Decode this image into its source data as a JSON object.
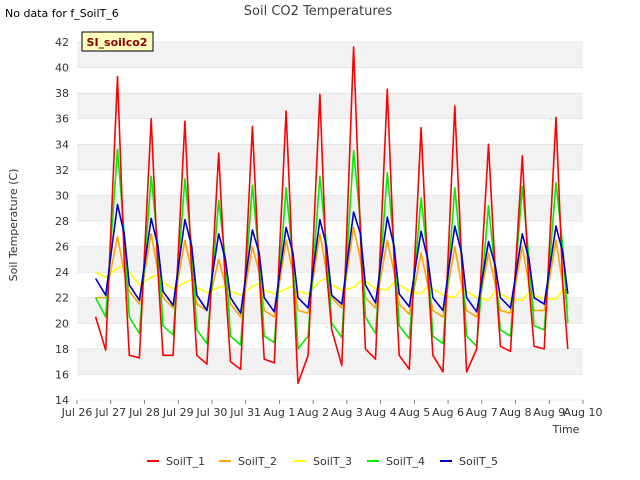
{
  "note": "No data for f_SoilT_6",
  "chart_data": {
    "type": "line",
    "title": "Soil CO2 Temperatures",
    "xlabel": "Time",
    "ylabel": "Soil Temperature (C)",
    "site_label": "SI_soilco2",
    "ylim": [
      14,
      42
    ],
    "yticks": [
      14,
      16,
      18,
      20,
      22,
      24,
      26,
      28,
      30,
      32,
      34,
      36,
      38,
      40,
      42
    ],
    "xlim": [
      0,
      15
    ],
    "xticks": [
      0,
      1,
      2,
      3,
      4,
      5,
      6,
      7,
      8,
      9,
      10,
      11,
      12,
      13,
      14,
      15
    ],
    "xtick_labels": [
      "Jul 26",
      "Jul 27",
      "Jul 28",
      "Jul 29",
      "Jul 30",
      "Jul 31",
      "Aug 1",
      "Aug 2",
      "Aug 3",
      "Aug 4",
      "Aug 5",
      "Aug 6",
      "Aug 7",
      "Aug 8",
      "Aug 9",
      "Aug 10"
    ],
    "grid": "horizontal-bands",
    "legend_position": "bottom",
    "series": [
      {
        "name": "SoilT_1",
        "color": "#ff0000",
        "x": [
          0.55,
          0.85,
          1.2,
          1.4,
          1.55,
          1.85,
          2.2,
          2.4,
          2.55,
          2.85,
          3.2,
          3.4,
          3.55,
          3.85,
          4.2,
          4.4,
          4.55,
          4.85,
          5.2,
          5.4,
          5.55,
          5.85,
          6.2,
          6.4,
          6.55,
          6.85,
          7.2,
          7.4,
          7.55,
          7.85,
          8.2,
          8.4,
          8.55,
          8.85,
          9.2,
          9.4,
          9.55,
          9.85,
          10.2,
          10.4,
          10.55,
          10.85,
          11.2,
          11.4,
          11.55,
          11.85,
          12.2,
          12.4,
          12.55,
          12.85,
          13.2,
          13.4,
          13.55,
          13.85,
          14.2,
          14.4,
          14.55
        ],
        "y": [
          20.5,
          17.9,
          39.3,
          25,
          17.5,
          17.3,
          36,
          24,
          17.5,
          17.5,
          35.8,
          24,
          17.5,
          16.8,
          33.3,
          23,
          17,
          16.4,
          35.4,
          24,
          17.2,
          16.9,
          36.6,
          24,
          15.3,
          17.5,
          37.9,
          24,
          19.5,
          16.7,
          41.6,
          27,
          18,
          17.2,
          38.3,
          25,
          17.5,
          16.4,
          35.3,
          24,
          17.5,
          16.2,
          37,
          25,
          16.2,
          18,
          34,
          24,
          18.2,
          17.8,
          33.1,
          23,
          18.2,
          18,
          36.1,
          23,
          18
        ]
      },
      {
        "name": "SoilT_2",
        "color": "#ffa500",
        "x": [
          0.55,
          0.85,
          1.2,
          1.4,
          1.55,
          1.85,
          2.2,
          2.4,
          2.55,
          2.85,
          3.2,
          3.4,
          3.55,
          3.85,
          4.2,
          4.4,
          4.55,
          4.85,
          5.2,
          5.4,
          5.55,
          5.85,
          6.2,
          6.4,
          6.55,
          6.85,
          7.2,
          7.4,
          7.55,
          7.85,
          8.2,
          8.4,
          8.55,
          8.85,
          9.2,
          9.4,
          9.55,
          9.85,
          10.2,
          10.4,
          10.55,
          10.85,
          11.2,
          11.4,
          11.55,
          11.85,
          12.2,
          12.4,
          12.55,
          12.85,
          13.2,
          13.4,
          13.55,
          13.85,
          14.2,
          14.4,
          14.55
        ],
        "y": [
          22,
          22,
          26.8,
          24,
          22.5,
          21.5,
          27,
          24,
          22,
          21.2,
          26.5,
          24,
          21.5,
          21,
          25,
          23,
          21.5,
          20.5,
          26,
          24,
          21,
          20.5,
          26.5,
          24,
          21,
          20.8,
          27,
          24,
          22,
          21.2,
          27.5,
          25,
          22,
          21.2,
          26.5,
          24,
          21.5,
          20.7,
          25.5,
          23,
          21,
          20.5,
          26,
          23,
          21,
          20.5,
          25.5,
          23,
          21,
          20.8,
          26,
          23,
          21,
          21,
          26.5,
          23,
          21.2
        ]
      },
      {
        "name": "SoilT_3",
        "color": "#ffff00",
        "x": [
          0.55,
          0.85,
          1.2,
          1.4,
          1.55,
          1.85,
          2.2,
          2.4,
          2.55,
          2.85,
          3.2,
          3.4,
          3.55,
          3.85,
          4.2,
          4.4,
          4.55,
          4.85,
          5.2,
          5.4,
          5.55,
          5.85,
          6.2,
          6.4,
          6.55,
          6.85,
          7.2,
          7.4,
          7.55,
          7.85,
          8.2,
          8.4,
          8.55,
          8.85,
          9.2,
          9.4,
          9.55,
          9.85,
          10.2,
          10.4,
          10.55,
          10.85,
          11.2,
          11.4,
          11.55,
          11.85,
          12.2,
          12.4,
          12.55,
          12.85,
          13.2,
          13.4,
          13.55,
          13.85,
          14.2,
          14.4,
          14.55
        ],
        "y": [
          24,
          23.6,
          24.3,
          24.5,
          24,
          23,
          23.6,
          23.8,
          23.2,
          22.7,
          23.2,
          23.4,
          22.8,
          22.4,
          22.8,
          23,
          22.5,
          22.2,
          22.9,
          23.1,
          22.6,
          22.3,
          22.7,
          22.9,
          22.5,
          22.3,
          23.3,
          23.5,
          23,
          22.6,
          22.8,
          23.3,
          23.3,
          22.7,
          22.6,
          23.2,
          23,
          22.5,
          22.3,
          22.9,
          22.7,
          22.2,
          22,
          22.7,
          22.5,
          22,
          21.8,
          22.5,
          22.3,
          21.9,
          21.8,
          22.4,
          22.2,
          21.9,
          21.9,
          22.6,
          22.5
        ]
      },
      {
        "name": "SoilT_4",
        "color": "#00ee00",
        "x": [
          0.55,
          0.85,
          1.2,
          1.4,
          1.55,
          1.85,
          2.2,
          2.4,
          2.55,
          2.85,
          3.2,
          3.4,
          3.55,
          3.85,
          4.2,
          4.4,
          4.55,
          4.85,
          5.2,
          5.4,
          5.55,
          5.85,
          6.2,
          6.4,
          6.55,
          6.85,
          7.2,
          7.4,
          7.55,
          7.85,
          8.2,
          8.4,
          8.55,
          8.85,
          9.2,
          9.4,
          9.55,
          9.85,
          10.2,
          10.4,
          10.55,
          10.85,
          11.2,
          11.4,
          11.55,
          11.85,
          12.2,
          12.4,
          12.55,
          12.85,
          13.2,
          13.4,
          13.55,
          13.85,
          14.2,
          14.4,
          14.55
        ],
        "y": [
          22,
          20.5,
          33.6,
          27,
          20.5,
          19.2,
          31.5,
          26,
          19.8,
          19.1,
          31.3,
          26,
          19.5,
          18.4,
          29.6,
          25,
          19,
          18.3,
          30.8,
          25,
          19,
          18.5,
          30.6,
          25,
          18,
          19,
          31.5,
          26,
          20,
          18.9,
          33.5,
          28,
          20.5,
          19.2,
          31.8,
          26,
          19.8,
          18.8,
          29.8,
          25,
          19,
          18.4,
          30.6,
          25,
          19,
          18.2,
          29.2,
          24,
          19.5,
          19,
          30.7,
          25,
          19.8,
          19.5,
          31,
          26,
          20
        ]
      },
      {
        "name": "SoilT_5",
        "color": "#0000cc",
        "x": [
          0.55,
          0.85,
          1.2,
          1.4,
          1.55,
          1.85,
          2.2,
          2.4,
          2.55,
          2.85,
          3.2,
          3.4,
          3.55,
          3.85,
          4.2,
          4.4,
          4.55,
          4.85,
          5.2,
          5.4,
          5.55,
          5.85,
          6.2,
          6.4,
          6.55,
          6.85,
          7.2,
          7.4,
          7.55,
          7.85,
          8.2,
          8.4,
          8.55,
          8.85,
          9.2,
          9.4,
          9.55,
          9.85,
          10.2,
          10.4,
          10.55,
          10.85,
          11.2,
          11.4,
          11.55,
          11.85,
          12.2,
          12.4,
          12.55,
          12.85,
          13.2,
          13.4,
          13.55,
          13.85,
          14.2,
          14.4,
          14.55
        ],
        "y": [
          23.5,
          22.2,
          29.3,
          27,
          23,
          21.8,
          28.2,
          26,
          22.5,
          21.4,
          28.1,
          26,
          22.2,
          21,
          27,
          25,
          22,
          20.8,
          27.3,
          25.5,
          22,
          20.9,
          27.5,
          25.5,
          22,
          21.2,
          28.1,
          26,
          22.2,
          21.5,
          28.7,
          27,
          23,
          21.6,
          28.3,
          26,
          22.3,
          21.3,
          27.2,
          25,
          22,
          21,
          27.6,
          25.5,
          22,
          20.9,
          26.4,
          24.5,
          22,
          21.2,
          27,
          25,
          22,
          21.5,
          27.6,
          25.5,
          22.3
        ]
      }
    ]
  }
}
